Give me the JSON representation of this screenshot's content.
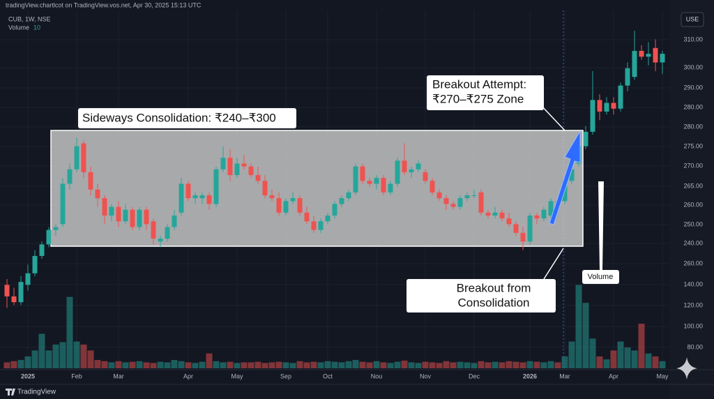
{
  "chart_data": {
    "type": "candlestick",
    "header": "tradingView.chartlcot on TradingView.vos.net, Apr 30, 2025 15:13 UTC",
    "symbol": "CUB, 1W, NSE",
    "volume_label": "Volume",
    "volume_value": "10",
    "currency_button": "USE",
    "brand": "TradingView",
    "price_axis_labels": [
      "310.00",
      "300.00",
      "290.00",
      "280.00",
      "280.00",
      "275.00",
      "270.00",
      "265.00",
      "260.00",
      "250.00",
      "240.00",
      "260.00",
      "140.00",
      "120.00",
      "100.00",
      "80.00"
    ],
    "annotations": {
      "consolidation": "Sideways Consolidation: ₹240–₹300",
      "attempt_line1": "Breakout Attempt:",
      "attempt_line2": "₹270–₹275 Zone",
      "breakout_line1": "Breakout from",
      "breakout_line2": "Consolidation",
      "volume": "Volume"
    },
    "up_color": "#26a69a",
    "down_color": "#ef5350",
    "ylim": [
      193,
      321
    ],
    "volume_ylim": [
      0,
      150
    ],
    "categories": [
      null,
      null,
      null,
      "2025",
      null,
      null,
      null,
      null,
      null,
      null,
      "Feb",
      null,
      null,
      null,
      null,
      null,
      "Mar",
      null,
      null,
      null,
      null,
      null,
      null,
      null,
      null,
      null,
      "Apr",
      null,
      null,
      null,
      null,
      null,
      null,
      "May",
      null,
      null,
      null,
      null,
      null,
      null,
      "Sep",
      null,
      null,
      null,
      null,
      null,
      "Oct",
      null,
      null,
      null,
      null,
      null,
      null,
      "Nou",
      null,
      null,
      null,
      null,
      null,
      null,
      "Nov",
      null,
      null,
      null,
      null,
      null,
      null,
      "Dec",
      null,
      null,
      null,
      null,
      null,
      null,
      null,
      "2026",
      null,
      null,
      null,
      null,
      "Mar",
      null,
      null,
      null,
      null,
      null,
      null,
      "Apr",
      null,
      null,
      null,
      null,
      null,
      null,
      "May"
    ],
    "ohlc": [
      [
        226,
        228,
        218,
        222
      ],
      [
        222,
        225,
        219,
        220
      ],
      [
        220,
        229,
        219,
        227
      ],
      [
        226,
        233,
        224,
        230
      ],
      [
        230,
        238,
        229,
        236
      ],
      [
        236,
        241,
        235,
        240
      ],
      [
        240,
        246,
        239,
        245
      ],
      [
        245,
        247,
        243,
        246
      ],
      [
        247,
        263,
        246,
        261
      ],
      [
        261,
        268,
        259,
        266
      ],
      [
        266,
        277,
        265,
        274
      ],
      [
        275,
        276,
        263,
        265
      ],
      [
        265,
        267,
        257,
        259
      ],
      [
        259,
        261,
        253,
        256
      ],
      [
        256,
        257,
        247,
        250
      ],
      [
        250,
        254,
        248,
        253
      ],
      [
        253,
        255,
        246,
        248
      ],
      [
        248,
        254,
        247,
        252
      ],
      [
        252,
        253,
        245,
        246
      ],
      [
        246,
        253,
        245,
        252
      ],
      [
        252,
        253,
        245,
        247
      ],
      [
        248,
        249,
        240,
        242
      ],
      [
        241,
        243,
        239,
        242
      ],
      [
        242,
        247,
        241,
        246
      ],
      [
        246,
        252,
        245,
        250
      ],
      [
        251,
        263,
        250,
        261
      ],
      [
        261,
        262,
        255,
        256
      ],
      [
        256,
        258,
        254,
        257
      ],
      [
        256,
        258,
        254,
        257
      ],
      [
        257,
        258,
        252,
        254
      ],
      [
        254,
        267,
        253,
        266
      ],
      [
        266,
        274,
        265,
        270
      ],
      [
        270,
        273,
        262,
        264
      ],
      [
        264,
        270,
        263,
        268
      ],
      [
        268,
        271,
        266,
        267
      ],
      [
        267,
        268,
        263,
        264
      ],
      [
        264,
        267,
        261,
        262
      ],
      [
        262,
        264,
        256,
        257
      ],
      [
        257,
        259,
        255,
        256
      ],
      [
        256,
        258,
        250,
        251
      ],
      [
        251,
        256,
        250,
        255
      ],
      [
        255,
        258,
        254,
        256
      ],
      [
        256,
        257,
        250,
        251
      ],
      [
        251,
        253,
        247,
        248
      ],
      [
        248,
        250,
        244,
        245
      ],
      [
        245,
        249,
        244,
        248
      ],
      [
        248,
        251,
        247,
        250
      ],
      [
        250,
        255,
        249,
        254
      ],
      [
        254,
        257,
        253,
        256
      ],
      [
        256,
        259,
        255,
        258
      ],
      [
        258,
        268,
        257,
        267
      ],
      [
        267,
        268,
        261,
        262
      ],
      [
        262,
        263,
        260,
        261
      ],
      [
        261,
        264,
        259,
        263
      ],
      [
        263,
        264,
        257,
        258
      ],
      [
        258,
        262,
        257,
        261
      ],
      [
        261,
        270,
        260,
        269
      ],
      [
        269,
        275,
        264,
        265
      ],
      [
        265,
        267,
        263,
        266
      ],
      [
        266,
        269,
        265,
        268
      ],
      [
        265,
        266,
        261,
        262
      ],
      [
        262,
        263,
        257,
        258
      ],
      [
        258,
        259,
        255,
        256
      ],
      [
        256,
        257,
        252,
        254
      ],
      [
        254,
        255,
        252,
        253
      ],
      [
        253,
        257,
        252,
        256
      ],
      [
        256,
        258,
        255,
        257
      ],
      [
        257,
        259,
        256,
        257
      ],
      [
        258,
        259,
        250,
        251
      ],
      [
        251,
        252,
        249,
        250
      ],
      [
        250,
        253,
        249,
        251
      ],
      [
        251,
        252,
        248,
        249
      ],
      [
        249,
        251,
        246,
        247
      ],
      [
        247,
        248,
        243,
        244
      ],
      [
        244,
        246,
        238,
        241
      ],
      [
        241,
        251,
        240,
        250
      ],
      [
        250,
        251,
        247,
        249
      ],
      [
        249,
        253,
        248,
        252
      ],
      [
        250,
        256,
        249,
        255
      ],
      [
        255,
        256,
        253,
        254
      ],
      [
        255,
        263,
        254,
        262
      ],
      [
        262,
        268,
        261,
        266
      ],
      [
        268,
        275,
        267,
        274
      ],
      [
        274,
        281,
        273,
        279
      ],
      [
        279,
        300,
        278,
        290
      ],
      [
        290,
        292,
        283,
        286
      ],
      [
        286,
        291,
        285,
        289
      ],
      [
        289,
        291,
        285,
        287
      ],
      [
        287,
        296,
        286,
        295
      ],
      [
        295,
        303,
        293,
        301
      ],
      [
        298,
        314,
        297,
        307
      ],
      [
        307,
        309,
        304,
        305
      ],
      [
        305,
        310,
        302,
        306
      ],
      [
        308,
        311,
        300,
        303
      ],
      [
        303,
        307,
        299,
        306
      ]
    ],
    "volume": [
      10,
      12,
      14,
      20,
      30,
      58,
      30,
      40,
      44,
      120,
      45,
      40,
      30,
      14,
      12,
      10,
      12,
      10,
      11,
      12,
      10,
      9,
      11,
      10,
      14,
      12,
      10,
      9,
      11,
      25,
      12,
      10,
      11,
      9,
      10,
      10,
      11,
      9,
      10,
      11,
      10,
      9,
      12,
      10,
      11,
      10,
      12,
      11,
      10,
      12,
      14,
      11,
      10,
      12,
      10,
      9,
      11,
      13,
      10,
      9,
      11,
      10,
      9,
      12,
      10,
      11,
      10,
      9,
      12,
      10,
      11,
      10,
      12,
      11,
      10,
      12,
      11,
      10,
      12,
      10,
      20,
      45,
      140,
      110,
      50,
      20,
      15,
      30,
      45,
      35,
      30,
      75,
      25,
      20,
      12
    ]
  }
}
